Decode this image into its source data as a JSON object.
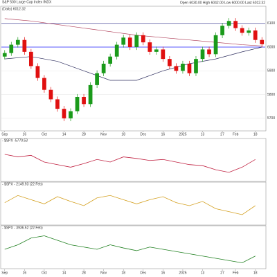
{
  "chart_data": [
    {
      "type": "candlestick",
      "title": "S&P 500 Large Cap Index INDX",
      "subtitle": "(Daily) 6012.32",
      "quote": "Open 6030.00  High 6042.00  Low 6000.00  Last 6012.32",
      "x": [
        0,
        1,
        2,
        3,
        4,
        5,
        6,
        7,
        8,
        9,
        10,
        11,
        12,
        13,
        14,
        15,
        16,
        17,
        18,
        19,
        20,
        21,
        22,
        23,
        24,
        25,
        26,
        27,
        28,
        29,
        30,
        31,
        32,
        33,
        34,
        35,
        36,
        37,
        38,
        39
      ],
      "open": [
        5960,
        5975,
        6010,
        6030,
        5980,
        5920,
        5870,
        5820,
        5780,
        5740,
        5700,
        5730,
        5790,
        5760,
        5840,
        5890,
        5930,
        5960,
        6010,
        6040,
        6000,
        6050,
        6020,
        5980,
        5990,
        5950,
        5920,
        5900,
        5930,
        5890,
        5950,
        5990,
        5970,
        6050,
        6090,
        6110,
        6080,
        6060,
        6070,
        6030
      ],
      "high": [
        5987,
        6022,
        6042,
        6042,
        5992,
        5932,
        5882,
        5832,
        5792,
        5752,
        5742,
        5802,
        5802,
        5852,
        5902,
        5942,
        5972,
        6022,
        6052,
        6052,
        6062,
        6062,
        6032,
        6002,
        6002,
        5962,
        5932,
        5942,
        5942,
        5962,
        6002,
        6002,
        6062,
        6102,
        6122,
        6122,
        6092,
        6082,
        6082,
        6042
      ],
      "low": [
        5948,
        5963,
        5998,
        5968,
        5908,
        5858,
        5808,
        5768,
        5728,
        5688,
        5688,
        5718,
        5748,
        5748,
        5828,
        5878,
        5918,
        5948,
        5998,
        5988,
        5988,
        6008,
        5968,
        5968,
        5938,
        5908,
        5888,
        5888,
        5878,
        5878,
        5938,
        5958,
        5958,
        6038,
        6078,
        6068,
        6048,
        6048,
        6018,
        6000
      ],
      "close": [
        5975,
        6010,
        6030,
        5980,
        5920,
        5870,
        5820,
        5780,
        5740,
        5700,
        5730,
        5790,
        5760,
        5840,
        5890,
        5930,
        5960,
        6010,
        6040,
        6000,
        6050,
        6020,
        5980,
        5990,
        5950,
        5920,
        5900,
        5930,
        5890,
        5950,
        5990,
        5970,
        6050,
        6090,
        6110,
        6080,
        6060,
        6070,
        6030,
        6012
      ],
      "up_color": "#1a9a1a",
      "down_color": "#e01010",
      "lines": [
        {
          "color": "#b0405a",
          "x": [
            0,
            4,
            8,
            12,
            16,
            20,
            24,
            28,
            32,
            36,
            39
          ],
          "values": [
            6120,
            6110,
            6095,
            6080,
            6065,
            6050,
            6040,
            6030,
            6020,
            6010,
            6005
          ]
        },
        {
          "color": "#303060",
          "x": [
            0,
            4,
            8,
            12,
            16,
            20,
            24,
            28,
            32,
            36,
            39
          ],
          "values": [
            5950,
            5960,
            5940,
            5900,
            5860,
            5860,
            5900,
            5930,
            5950,
            5980,
            6000
          ]
        }
      ],
      "hlines": [
        {
          "value": 6100,
          "color": "#5050a0"
        },
        {
          "value": 6000,
          "color": "#2020ff"
        }
      ],
      "xlim": [
        -0.5,
        39.5
      ],
      "ylim": [
        5650,
        6140
      ],
      "yticks": [
        5700,
        5800,
        5900,
        6000,
        6100
      ],
      "xticks": [
        {
          "value": 0,
          "label": "Sep"
        },
        {
          "value": 3,
          "label": "16"
        },
        {
          "value": 6,
          "label": "Oct"
        },
        {
          "value": 9,
          "label": "14"
        },
        {
          "value": 12,
          "label": "28"
        },
        {
          "value": 15,
          "label": "Nov"
        },
        {
          "value": 18,
          "label": "18"
        },
        {
          "value": 21,
          "label": "Dec"
        },
        {
          "value": 24,
          "label": "16"
        },
        {
          "value": 27,
          "label": "2025"
        },
        {
          "value": 30,
          "label": "13"
        },
        {
          "value": 33,
          "label": "27"
        },
        {
          "value": 35,
          "label": "Feb"
        },
        {
          "value": 38,
          "label": "18"
        }
      ]
    },
    {
      "type": "line",
      "title": "- $SPX -5770.53",
      "color": "#c02040",
      "x": [
        0,
        2,
        4,
        6,
        8,
        10,
        12,
        14,
        16,
        18,
        20,
        22,
        24,
        26,
        28,
        30,
        32,
        34,
        36,
        38
      ],
      "values": [
        60,
        55,
        58,
        45,
        40,
        35,
        42,
        50,
        45,
        55,
        52,
        48,
        50,
        45,
        40,
        38,
        30,
        25,
        35,
        50
      ],
      "xlim": [
        -0.5,
        39.5
      ],
      "ylim": [
        10,
        80
      ]
    },
    {
      "type": "line",
      "title": "- $SPX - 2149.93 (22 Feb)",
      "color": "#d4a020",
      "x": [
        0,
        2,
        4,
        6,
        8,
        10,
        12,
        14,
        16,
        18,
        20,
        22,
        24,
        26,
        28,
        30,
        32,
        34,
        36,
        38
      ],
      "values": [
        50,
        62,
        55,
        48,
        60,
        52,
        45,
        58,
        62,
        55,
        48,
        55,
        60,
        50,
        45,
        52,
        40,
        35,
        30,
        45
      ],
      "xlim": [
        -0.5,
        39.5
      ],
      "ylim": [
        15,
        75
      ]
    },
    {
      "type": "line",
      "title": "- $SPX - 3936.52 (22 Feb)",
      "color": "#208020",
      "x": [
        0,
        2,
        4,
        6,
        8,
        10,
        12,
        14,
        16,
        18,
        20,
        22,
        24,
        26,
        28,
        30,
        32,
        34,
        36,
        38
      ],
      "values": [
        45,
        55,
        70,
        75,
        65,
        55,
        50,
        45,
        55,
        48,
        42,
        50,
        45,
        40,
        35,
        30,
        25,
        20,
        15,
        30
      ],
      "xlim": [
        -0.5,
        39.5
      ],
      "ylim": [
        5,
        85
      ]
    }
  ]
}
